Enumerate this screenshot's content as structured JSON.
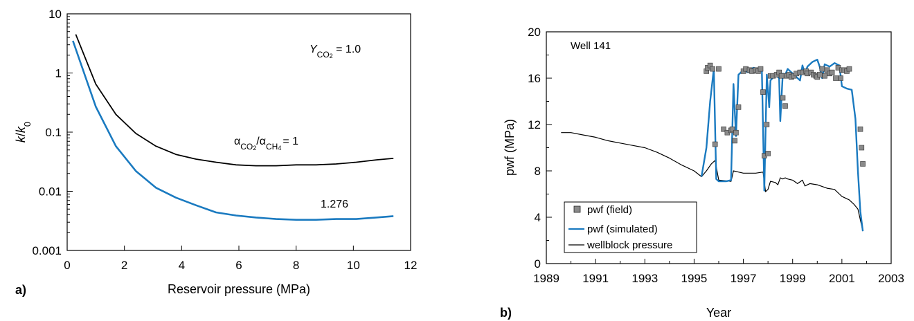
{
  "chart_data": [
    {
      "panel_label": "a)",
      "type": "line",
      "title": "",
      "xlabel": "Reservoir pressure (MPa)",
      "ylabel_italic_1": "k",
      "ylabel_slash": "/",
      "ylabel_italic_2": "k",
      "ylabel_sub": "0",
      "xlim": [
        0,
        12
      ],
      "ylim": [
        0.001,
        10
      ],
      "yscale": "log",
      "xticks": [
        0,
        2,
        4,
        6,
        8,
        10,
        12
      ],
      "xtick_labels": [
        "0",
        "2",
        "4",
        "6",
        "8",
        "10",
        "12"
      ],
      "yticks": [
        0.001,
        0.01,
        0.1,
        1,
        10
      ],
      "ytick_labels": [
        "0.001",
        "0.01",
        "0.1",
        "1",
        "10"
      ],
      "grid": false,
      "annotations": {
        "y_label_main": "Y",
        "y_label_sub": "CO",
        "y_label_sub2": "2",
        "y_label_value": " = 1.0",
        "alpha_1": "α",
        "alpha_1_sub": "CO",
        "alpha_1_sub2": "2",
        "alpha_slash": "/α",
        "alpha_2_sub": "CH",
        "alpha_2_sub2": "4",
        "alpha_value": "= 1",
        "blue_label": "1.276"
      },
      "series": [
        {
          "color": "#000000",
          "x": [
            0.3,
            1.0,
            1.7,
            2.4,
            3.1,
            3.8,
            4.5,
            5.2,
            5.9,
            6.6,
            7.3,
            8.0,
            8.7,
            9.4,
            10.1,
            10.8,
            11.4
          ],
          "y": [
            4.5,
            0.65,
            0.2,
            0.095,
            0.058,
            0.042,
            0.035,
            0.031,
            0.028,
            0.027,
            0.027,
            0.028,
            0.028,
            0.029,
            0.031,
            0.034,
            0.036
          ]
        },
        {
          "color": "#1a7ac0",
          "x": [
            0.2,
            1.0,
            1.7,
            2.4,
            3.1,
            3.8,
            4.5,
            5.2,
            5.9,
            6.6,
            7.3,
            8.0,
            8.7,
            9.4,
            10.1,
            10.8,
            11.4
          ],
          "y": [
            3.5,
            0.27,
            0.058,
            0.022,
            0.0115,
            0.0078,
            0.0058,
            0.0044,
            0.0039,
            0.0036,
            0.0034,
            0.0033,
            0.0033,
            0.0034,
            0.0034,
            0.0036,
            0.0038
          ]
        }
      ]
    },
    {
      "panel_label": "b)",
      "type": "line",
      "title": "",
      "panel_title": "Well 141",
      "xlabel": "Year",
      "ylabel": "pwf (MPa)",
      "xlim": [
        1989,
        2003
      ],
      "ylim": [
        0,
        20
      ],
      "xticks": [
        1989,
        1991,
        1993,
        1995,
        1997,
        1999,
        2001,
        2003
      ],
      "xtick_labels": [
        "1989",
        "1991",
        "1993",
        "1995",
        "1997",
        "1999",
        "2001",
        "2003"
      ],
      "yticks": [
        0,
        4,
        8,
        12,
        16,
        20
      ],
      "ytick_labels": [
        "0",
        "4",
        "8",
        "12",
        "16",
        "20"
      ],
      "grid": false,
      "legend_position": "bottom-left",
      "legend": [
        "pwf (field)",
        "pwf (simulated)",
        "wellblock pressure"
      ],
      "series": [
        {
          "name": "wellblock pressure",
          "color": "#000000",
          "x": [
            1989.6,
            1990.0,
            1990.5,
            1991.0,
            1991.5,
            1992.0,
            1992.5,
            1993.0,
            1993.5,
            1994.0,
            1994.5,
            1995.0,
            1995.3,
            1995.5,
            1995.7,
            1995.85,
            1996.0,
            1996.5,
            1996.6,
            1996.8,
            1997.0,
            1997.5,
            1997.8,
            1997.9,
            1998.0,
            1998.1,
            1998.3,
            1998.4,
            1998.5,
            1998.6,
            1998.7,
            1998.8,
            1999.0,
            1999.2,
            1999.4,
            1999.5,
            1999.7,
            2000.0,
            2000.4,
            2000.7,
            2000.9,
            2001.0,
            2001.3,
            2001.5,
            2001.65,
            2001.8,
            2001.85
          ],
          "y": [
            11.3,
            11.3,
            11.1,
            10.9,
            10.6,
            10.4,
            10.2,
            10.0,
            9.6,
            9.1,
            8.5,
            8.0,
            7.5,
            8.0,
            8.6,
            8.9,
            7.2,
            7.1,
            8.0,
            7.9,
            7.8,
            7.8,
            7.9,
            6.2,
            6.4,
            7.1,
            7.0,
            6.8,
            7.4,
            7.3,
            7.4,
            7.3,
            7.2,
            6.9,
            7.2,
            6.7,
            6.9,
            6.8,
            6.5,
            6.4,
            6.0,
            5.8,
            5.5,
            5.1,
            4.7,
            3.3,
            2.8
          ]
        },
        {
          "name": "pwf (simulated)",
          "color": "#1a7ac0",
          "x": [
            1995.3,
            1995.5,
            1995.65,
            1995.8,
            1995.9,
            1996.0,
            1996.3,
            1996.5,
            1996.6,
            1996.7,
            1996.8,
            1997.0,
            1997.2,
            1997.4,
            1997.6,
            1997.75,
            1997.85,
            1997.95,
            1998.05,
            1998.1,
            1998.3,
            1998.45,
            1998.5,
            1998.6,
            1998.7,
            1998.8,
            1999.0,
            1999.3,
            1999.4,
            1999.5,
            1999.6,
            1999.8,
            2000.0,
            2000.1,
            2000.2,
            2000.3,
            2000.5,
            2000.7,
            2000.9,
            2001.0,
            2001.2,
            2001.4,
            2001.55,
            2001.65,
            2001.75,
            2001.85
          ],
          "y": [
            7.5,
            10.0,
            14.0,
            16.8,
            7.3,
            7.1,
            7.1,
            7.2,
            15.5,
            11.0,
            16.3,
            16.7,
            16.5,
            16.9,
            16.8,
            16.6,
            6.3,
            16.3,
            13.5,
            15.8,
            16.3,
            16.0,
            12.3,
            16.4,
            16.3,
            16.8,
            16.4,
            15.8,
            17.1,
            16.4,
            17.0,
            17.4,
            17.6,
            17.0,
            16.0,
            17.2,
            17.0,
            17.3,
            17.1,
            15.3,
            15.1,
            15.0,
            12.5,
            8.0,
            4.5,
            2.8
          ]
        },
        {
          "name": "pwf (field)",
          "color": "#8a8a8a",
          "marker": "square",
          "x": [
            1995.5,
            1995.55,
            1995.65,
            1995.75,
            1995.85,
            1996.0,
            1996.2,
            1996.35,
            1996.5,
            1996.55,
            1996.65,
            1996.7,
            1996.8,
            1997.0,
            1997.1,
            1997.25,
            1997.35,
            1997.5,
            1997.6,
            1997.7,
            1997.8,
            1997.85,
            1997.95,
            1998.0,
            1998.1,
            1998.2,
            1998.35,
            1998.45,
            1998.55,
            1998.6,
            1998.7,
            1998.75,
            1998.85,
            1998.95,
            1999.05,
            1999.15,
            1999.3,
            1999.4,
            1999.55,
            1999.6,
            1999.75,
            1999.85,
            1999.95,
            2000.0,
            2000.1,
            2000.2,
            2000.3,
            2000.4,
            2000.5,
            2000.6,
            2000.75,
            2000.85,
            2000.95,
            2001.0,
            2001.1,
            2001.2,
            2001.3,
            2001.75,
            2001.8,
            2001.85
          ],
          "y": [
            16.6,
            16.9,
            17.1,
            16.8,
            10.3,
            16.8,
            11.6,
            11.3,
            11.5,
            11.6,
            10.6,
            11.3,
            13.5,
            16.6,
            16.8,
            16.7,
            16.6,
            16.7,
            16.6,
            16.8,
            14.8,
            9.3,
            12.0,
            9.5,
            16.2,
            16.2,
            16.3,
            16.5,
            16.2,
            14.3,
            13.6,
            16.2,
            16.3,
            16.1,
            16.2,
            16.4,
            16.5,
            16.5,
            16.6,
            16.4,
            16.5,
            16.3,
            16.2,
            16.1,
            16.3,
            16.8,
            16.2,
            16.7,
            16.4,
            16.5,
            16.0,
            16.9,
            16.0,
            16.7,
            16.7,
            16.6,
            16.8,
            11.6,
            10.0,
            8.6
          ]
        }
      ]
    }
  ]
}
